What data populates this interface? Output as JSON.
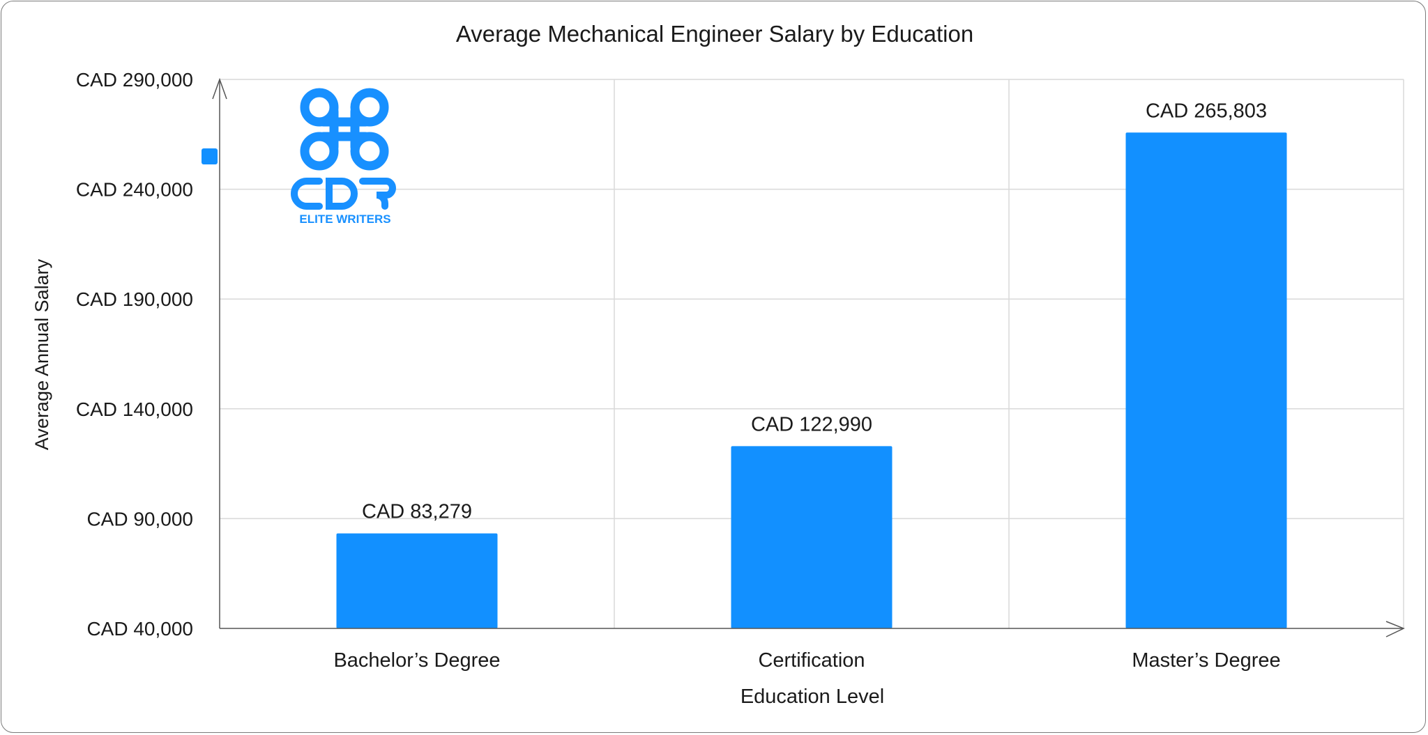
{
  "chart_data": {
    "type": "bar",
    "title": "Average Mechanical Engineer Salary by Education",
    "xlabel": "Education Level",
    "ylabel": "Average Annual Salary",
    "categories": [
      "Bachelor’s Degree",
      "Certification",
      "Master’s Degree"
    ],
    "values": [
      83279,
      122990,
      265803
    ],
    "data_labels": [
      "CAD 83,279",
      "CAD 122,990",
      "CAD 265,803"
    ],
    "ylim": [
      40000,
      290000
    ],
    "yticks": [
      40000,
      90000,
      140000,
      190000,
      240000,
      290000
    ],
    "ytick_labels": [
      "CAD 40,000",
      "CAD 90,000",
      "CAD 140,000",
      "CAD 190,000",
      "CAD 240,000",
      "CAD 290,000"
    ],
    "grid": true,
    "legend": "left, single unlabeled marker",
    "bar_color": "#1290FF"
  },
  "logo": {
    "text": "CDR",
    "subtext": "ELITE WRITERS",
    "color": "#1890FF"
  }
}
